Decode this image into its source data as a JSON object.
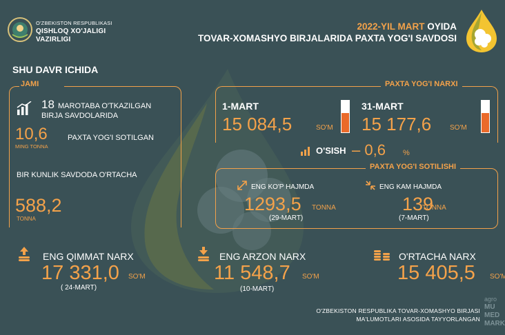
{
  "colors": {
    "background": "#3a5156",
    "accent": "#f4a24a",
    "gauge_fill": "#ea6a2a"
  },
  "header": {
    "org_line1": "O'ZBEKISTON RESPUBLIKASI",
    "org_line2": "QISHLOQ XO'JALIGI",
    "org_line3": "VAZIRLIGI",
    "title_date": "2022-YIL MART",
    "title_date_suffix": " OYIDA",
    "title_line2": "TOVAR-XOMASHYO BIRJALARIDA PAXTA YOG'I SAVDOSI"
  },
  "section_title": "SHU DAVR ICHIDA",
  "summary": {
    "tag": "JAMI",
    "count": "18",
    "count_text1": "MAROTABA O'TKAZILGAN",
    "count_text2": "BIRJA SAVDOLARIDA",
    "sold_value": "10,6",
    "sold_unit": "MING TONNA",
    "sold_text": "PAXTA YOG'I SOTILGAN",
    "avg_text": "BIR KUNLIK SAVDODA O'RTACHA",
    "avg_value": "588,2",
    "avg_unit": "TONNA"
  },
  "price": {
    "tag": "PAXTA YOG'I NARXI",
    "start": {
      "date": "1-MART",
      "value": "15 084,5",
      "unit": "SO'M",
      "gauge_level": 0.6
    },
    "end": {
      "date": "31-MART",
      "value": "15 177,6",
      "unit": "SO'M",
      "gauge_level": 0.6
    },
    "growth_label": "O'SISH",
    "growth_value": "– 0,6",
    "growth_unit": "%"
  },
  "sales": {
    "tag": "PAXTA YOG'I SOTILISHI",
    "max": {
      "label": "ENG KO'P HAJMDA",
      "value": "1293,5",
      "unit": "TONNA",
      "date": "(29-MART)"
    },
    "min": {
      "label": "ENG KAM HAJMDA",
      "value": "139",
      "unit": "TONNA",
      "date": "(7-MART)"
    }
  },
  "bottom": {
    "max_price": {
      "label": "ENG QIMMAT NARX",
      "value": "17 331,0",
      "unit": "SO'M",
      "date": "( 24-MART)"
    },
    "min_price": {
      "label": "ENG ARZON NARX",
      "value": "11 548,7",
      "unit": "SO'M",
      "date": "(10-MART)"
    },
    "avg_price": {
      "label": "O'RTACHA NARX",
      "value": "15 405,5",
      "unit": "SO'M"
    }
  },
  "footer": {
    "line1": "O'ZBEKISTON RESPUBLIKA TOVAR-XOMASHYO BIRJASI",
    "line2": "MA'LUMOTLARI ASOSIDA TAYYORLANGAN"
  },
  "brand": {
    "line1": "agro",
    "line2": "MU",
    "line3": "MED",
    "line4": "MARK"
  }
}
